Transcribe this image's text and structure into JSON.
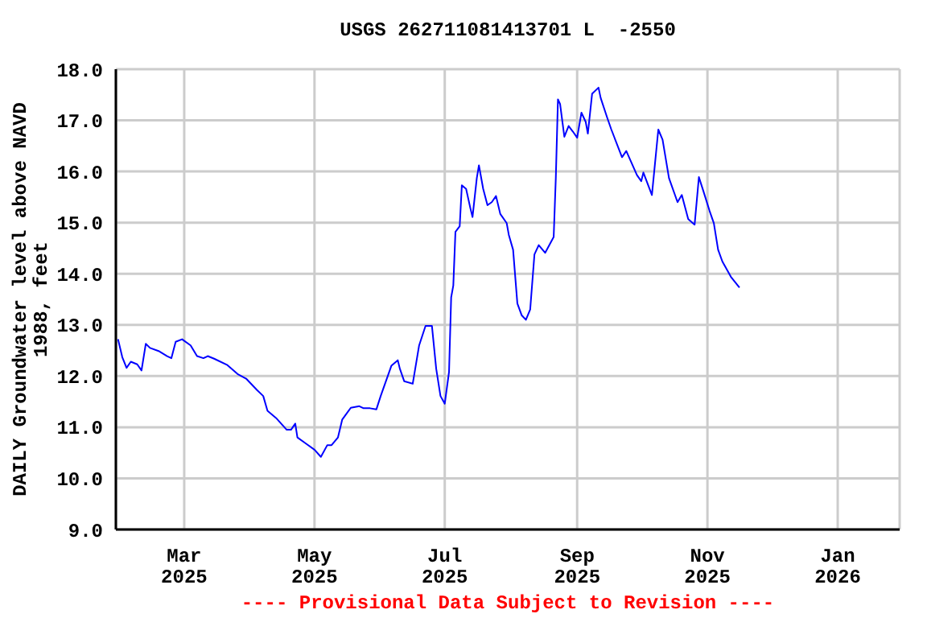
{
  "chart_data": {
    "type": "line",
    "title": "USGS 262711081413701 L  -2550",
    "ylabel": "DAILY Groundwater level above NAVD 1988, feet",
    "annotations": [
      "---- Provisional Data Subject to Revision ----"
    ],
    "x": [
      "2025-01-29",
      "2025-01-31",
      "2025-02-02",
      "2025-02-04",
      "2025-02-07",
      "2025-02-09",
      "2025-02-11",
      "2025-02-13",
      "2025-02-17",
      "2025-02-21",
      "2025-02-23",
      "2025-02-25",
      "2025-02-28",
      "2025-03-04",
      "2025-03-07",
      "2025-03-10",
      "2025-03-12",
      "2025-03-15",
      "2025-03-21",
      "2025-03-26",
      "2025-03-30",
      "2025-04-04",
      "2025-04-07",
      "2025-04-09",
      "2025-04-13",
      "2025-04-18",
      "2025-04-20",
      "2025-04-22",
      "2025-04-23",
      "2025-04-27",
      "2025-05-01",
      "2025-05-04",
      "2025-05-07",
      "2025-05-09",
      "2025-05-12",
      "2025-05-14",
      "2025-05-18",
      "2025-05-22",
      "2025-05-24",
      "2025-05-27",
      "2025-05-30",
      "2025-06-01",
      "2025-06-06",
      "2025-06-09",
      "2025-06-10",
      "2025-06-12",
      "2025-06-16",
      "2025-06-19",
      "2025-06-22",
      "2025-06-25",
      "2025-06-27",
      "2025-06-29",
      "2025-07-01",
      "2025-07-03",
      "2025-07-04",
      "2025-07-05",
      "2025-07-06",
      "2025-07-08",
      "2025-07-09",
      "2025-07-11",
      "2025-07-13",
      "2025-07-14",
      "2025-07-16",
      "2025-07-17",
      "2025-07-19",
      "2025-07-21",
      "2025-07-23",
      "2025-07-25",
      "2025-07-27",
      "2025-07-30",
      "2025-07-31",
      "2025-08-02",
      "2025-08-04",
      "2025-08-06",
      "2025-08-08",
      "2025-08-10",
      "2025-08-12",
      "2025-08-14",
      "2025-08-17",
      "2025-08-21",
      "2025-08-22",
      "2025-08-23",
      "2025-08-24",
      "2025-08-26",
      "2025-08-28",
      "2025-08-30",
      "2025-09-01",
      "2025-09-03",
      "2025-09-05",
      "2025-09-06",
      "2025-09-08",
      "2025-09-11",
      "2025-09-12",
      "2025-09-15",
      "2025-09-17",
      "2025-09-22",
      "2025-09-24",
      "2025-09-29",
      "2025-10-01",
      "2025-10-02",
      "2025-10-06",
      "2025-10-09",
      "2025-10-11",
      "2025-10-14",
      "2025-10-18",
      "2025-10-20",
      "2025-10-23",
      "2025-10-26",
      "2025-10-28",
      "2025-10-30",
      "2025-11-02",
      "2025-11-04",
      "2025-11-06",
      "2025-11-08",
      "2025-11-12",
      "2025-11-16"
    ],
    "series": [
      {
        "color": "#0000ff",
        "values": [
          12.72,
          12.37,
          12.16,
          12.28,
          12.23,
          12.11,
          12.63,
          12.55,
          12.49,
          12.39,
          12.35,
          12.67,
          12.72,
          12.6,
          12.39,
          12.35,
          12.39,
          12.34,
          12.22,
          12.04,
          11.95,
          11.73,
          11.61,
          11.32,
          11.18,
          10.95,
          10.95,
          11.07,
          10.8,
          10.68,
          10.56,
          10.42,
          10.65,
          10.65,
          10.8,
          11.15,
          11.38,
          11.41,
          11.37,
          11.37,
          11.35,
          11.61,
          12.2,
          12.31,
          12.14,
          11.9,
          11.85,
          12.6,
          12.98,
          12.98,
          12.14,
          11.61,
          11.46,
          12.08,
          13.54,
          13.77,
          14.82,
          14.93,
          15.73,
          15.66,
          15.28,
          15.11,
          15.87,
          16.12,
          15.66,
          15.34,
          15.4,
          15.52,
          15.17,
          14.99,
          14.76,
          14.47,
          13.42,
          13.19,
          13.1,
          13.3,
          14.38,
          14.56,
          14.41,
          14.72,
          15.87,
          17.41,
          17.32,
          16.68,
          16.89,
          16.78,
          16.66,
          17.15,
          16.97,
          16.74,
          17.52,
          17.64,
          17.44,
          17.06,
          16.82,
          16.28,
          16.4,
          15.93,
          15.81,
          15.98,
          15.54,
          16.82,
          16.62,
          15.87,
          15.4,
          15.54,
          15.07,
          14.96,
          15.89,
          15.63,
          15.23,
          14.99,
          14.47,
          14.24,
          13.94,
          13.73
        ]
      }
    ],
    "xlim": [
      "2025-01-28",
      "2026-01-30"
    ],
    "xticks": [
      {
        "value": "2025-03-01",
        "label": "Mar 2025"
      },
      {
        "value": "2025-05-01",
        "label": "May 2025"
      },
      {
        "value": "2025-07-01",
        "label": "Jul 2025"
      },
      {
        "value": "2025-09-01",
        "label": "Sep 2025"
      },
      {
        "value": "2025-11-01",
        "label": "Nov 2025"
      },
      {
        "value": "2026-01-01",
        "label": "Jan 2026"
      }
    ],
    "ylim": [
      9,
      18
    ],
    "yticks": [
      {
        "value": 9,
        "label": "9.0"
      },
      {
        "value": 10,
        "label": "10.0"
      },
      {
        "value": 11,
        "label": "11.0"
      },
      {
        "value": 12,
        "label": "12.0"
      },
      {
        "value": 13,
        "label": "13.0"
      },
      {
        "value": 14,
        "label": "14.0"
      },
      {
        "value": 15,
        "label": "15.0"
      },
      {
        "value": 16,
        "label": "16.0"
      },
      {
        "value": 17,
        "label": "17.0"
      },
      {
        "value": 18,
        "label": "18.0"
      }
    ],
    "grid": true
  }
}
